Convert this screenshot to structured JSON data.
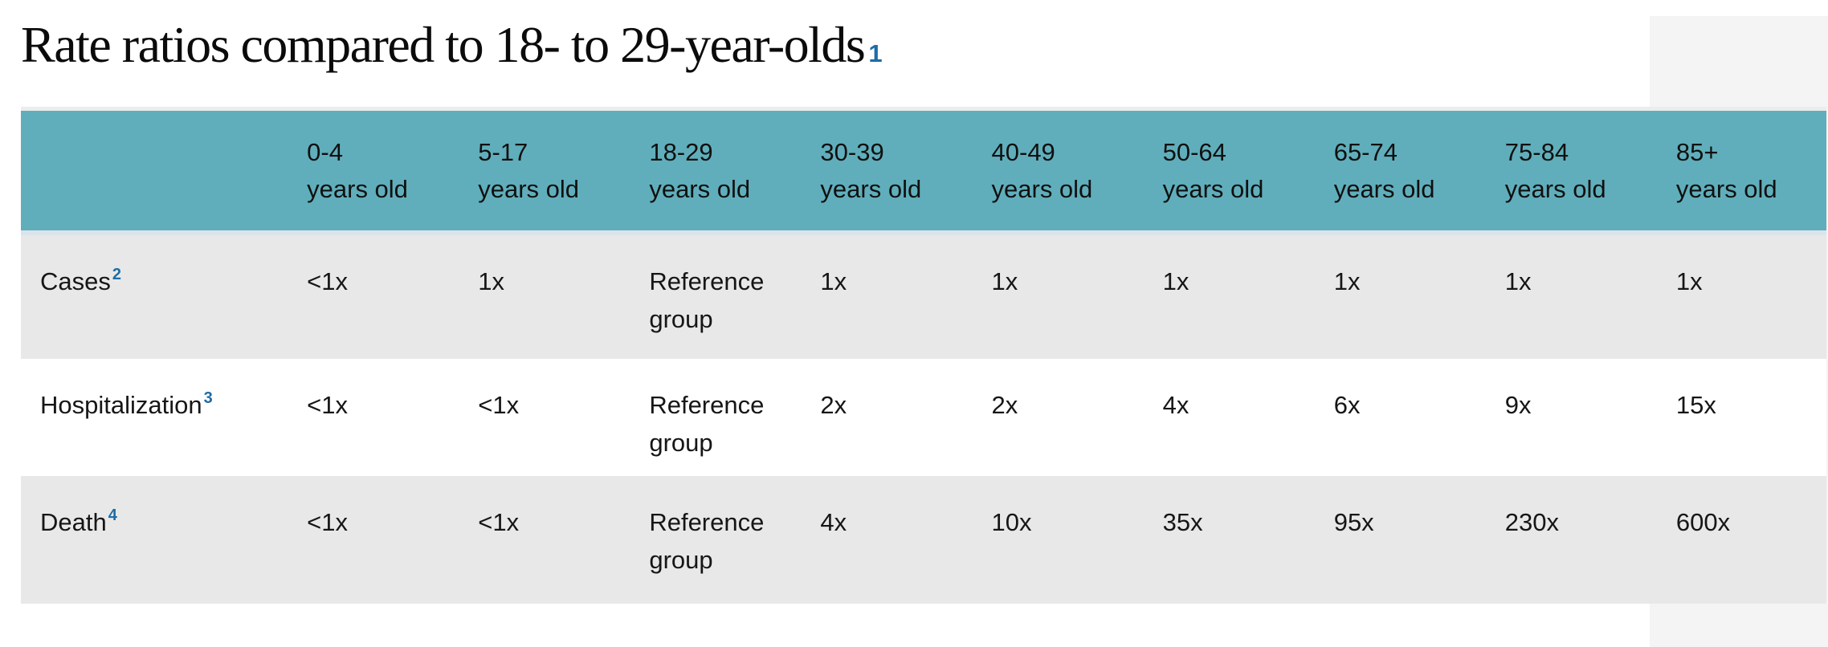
{
  "page": {
    "background": "#ffffff",
    "right_gutter_color": "#f4f4f4"
  },
  "title": {
    "text": "Rate ratios compared to 18- to 29-year-olds",
    "footnote_marker": "1"
  },
  "colors": {
    "header_teal": "#60aebb",
    "row_alt_gray": "#e8e8e8",
    "header_separator": "#dbe3eb",
    "footnote_blue": "#1e6ca6",
    "table_top_line": "#ececec"
  },
  "table": {
    "columns": [
      {
        "range": "0-4",
        "unit": "years old"
      },
      {
        "range": "5-17",
        "unit": "years old"
      },
      {
        "range": "18-29",
        "unit": "years old"
      },
      {
        "range": "30-39",
        "unit": "years old"
      },
      {
        "range": "40-49",
        "unit": "years old"
      },
      {
        "range": "50-64",
        "unit": "years old"
      },
      {
        "range": "65-74",
        "unit": "years old"
      },
      {
        "range": "75-84",
        "unit": "years old"
      },
      {
        "range": "85+",
        "unit": "years old"
      }
    ],
    "rows": [
      {
        "label": "Cases",
        "footnote_marker": "2",
        "values": [
          "<1x",
          "1x",
          "Reference group",
          "1x",
          "1x",
          "1x",
          "1x",
          "1x",
          "1x"
        ]
      },
      {
        "label": "Hospitalization",
        "footnote_marker": "3",
        "values": [
          "<1x",
          "<1x",
          "Reference group",
          "2x",
          "2x",
          "4x",
          "6x",
          "9x",
          "15x"
        ]
      },
      {
        "label": "Death",
        "footnote_marker": "4",
        "values": [
          "<1x",
          "<1x",
          "Reference group",
          "4x",
          "10x",
          "35x",
          "95x",
          "230x",
          "600x"
        ]
      }
    ]
  },
  "chart_data": {
    "type": "table",
    "title": "Rate ratios compared to 18- to 29-year-olds",
    "categories": [
      "0-4 years old",
      "5-17 years old",
      "18-29 years old",
      "30-39 years old",
      "40-49 years old",
      "50-64 years old",
      "65-74 years old",
      "75-84 years old",
      "85+ years old"
    ],
    "series": [
      {
        "name": "Cases",
        "values": [
          "<1x",
          "1x",
          "Reference group",
          "1x",
          "1x",
          "1x",
          "1x",
          "1x",
          "1x"
        ]
      },
      {
        "name": "Hospitalization",
        "values": [
          "<1x",
          "<1x",
          "Reference group",
          "2x",
          "2x",
          "4x",
          "6x",
          "9x",
          "15x"
        ]
      },
      {
        "name": "Death",
        "values": [
          "<1x",
          "<1x",
          "Reference group",
          "4x",
          "10x",
          "35x",
          "95x",
          "230x",
          "600x"
        ]
      }
    ],
    "notes": "Reference group is the 18-29 years old column; footnote markers 1-4 appear on title and row labels"
  }
}
